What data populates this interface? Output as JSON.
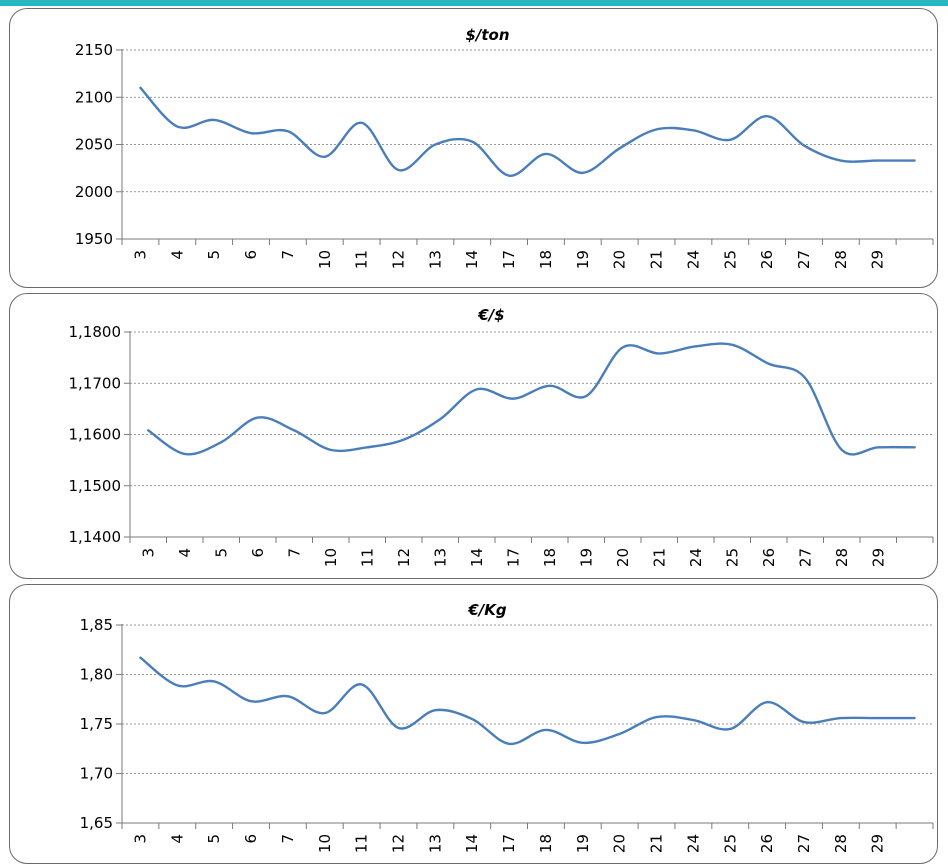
{
  "colors": {
    "line": "#4a7ebb",
    "accent_bar": "#27b7c0",
    "grid": "#7a7a7a"
  },
  "chart_data": [
    {
      "type": "line",
      "title": "$/ton",
      "xlabel": "",
      "ylabel": "",
      "categories": [
        "3",
        "4",
        "5",
        "6",
        "7",
        "10",
        "11",
        "12",
        "13",
        "14",
        "17",
        "18",
        "19",
        "20",
        "21",
        "24",
        "25",
        "26",
        "27",
        "28",
        "29",
        ""
      ],
      "series": [
        {
          "values": [
            2110,
            2069,
            2076,
            2062,
            2064,
            2037,
            2073,
            2023,
            2050,
            2053,
            2017,
            2040,
            2020,
            2046,
            2066,
            2065,
            2055,
            2080,
            2049,
            2033,
            2033,
            2033
          ]
        }
      ],
      "y_tick_labels": [
        "1950",
        "2000",
        "2050",
        "2100",
        "2150"
      ],
      "ylim": [
        1950,
        2150
      ],
      "yticks": [
        1950,
        2000,
        2050,
        2100,
        2150
      ],
      "grid": true,
      "legend": "none"
    },
    {
      "type": "line",
      "title": "€/$",
      "xlabel": "",
      "ylabel": "",
      "categories": [
        "3",
        "4",
        "5",
        "6",
        "7",
        "10",
        "11",
        "12",
        "13",
        "14",
        "17",
        "18",
        "19",
        "20",
        "21",
        "24",
        "25",
        "26",
        "27",
        "28",
        "29",
        ""
      ],
      "series": [
        {
          "values": [
            1.1608,
            1.1562,
            1.1585,
            1.1633,
            1.1608,
            1.157,
            1.1575,
            1.159,
            1.163,
            1.1688,
            1.167,
            1.1695,
            1.1675,
            1.177,
            1.1758,
            1.1772,
            1.1775,
            1.1738,
            1.171,
            1.157,
            1.1575,
            1.1575
          ]
        }
      ],
      "y_tick_labels": [
        "1,1400",
        "1,1500",
        "1,1600",
        "1,1700",
        "1,1800"
      ],
      "ylim": [
        1.14,
        1.18
      ],
      "yticks": [
        1.14,
        1.15,
        1.16,
        1.17,
        1.18
      ],
      "grid": true,
      "legend": "none"
    },
    {
      "type": "line",
      "title": "€/Kg",
      "xlabel": "",
      "ylabel": "",
      "categories": [
        "3",
        "4",
        "5",
        "6",
        "7",
        "10",
        "11",
        "12",
        "13",
        "14",
        "17",
        "18",
        "19",
        "20",
        "21",
        "24",
        "25",
        "26",
        "27",
        "28",
        "29",
        ""
      ],
      "series": [
        {
          "values": [
            1.817,
            1.789,
            1.793,
            1.773,
            1.778,
            1.761,
            1.79,
            1.746,
            1.764,
            1.755,
            1.73,
            1.744,
            1.731,
            1.74,
            1.757,
            1.754,
            1.745,
            1.772,
            1.752,
            1.756,
            1.756,
            1.756
          ]
        }
      ],
      "y_tick_labels": [
        "1,65",
        "1,70",
        "1,75",
        "1,80",
        "1,85"
      ],
      "ylim": [
        1.65,
        1.85
      ],
      "yticks": [
        1.65,
        1.7,
        1.75,
        1.8,
        1.85
      ],
      "grid": true,
      "legend": "none"
    }
  ]
}
